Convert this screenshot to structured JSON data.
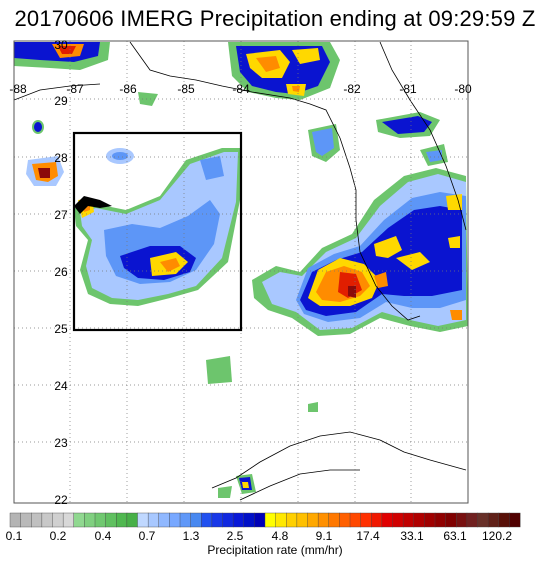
{
  "title": "20170606 IMERG Precipitation ending at 09:29:59 Z",
  "map": {
    "lon_range": [
      -88,
      -80
    ],
    "lat_range": [
      21.8,
      30.4
    ],
    "lon_labels": [
      "-88",
      "-87",
      "-86",
      "-85",
      "-84",
      "-82",
      "-81",
      "-80"
    ],
    "lat_labels": [
      "30",
      "29",
      "28",
      "27",
      "26",
      "25",
      "24",
      "23",
      "22"
    ],
    "grid": "dotted",
    "highlight_box": {
      "lon": [
        -86.7,
        -83.9
      ],
      "lat": [
        25.0,
        28.0
      ]
    }
  },
  "colorbar": {
    "title": "Precipitation rate (mm/hr)",
    "tick_labels": [
      "0.1",
      "0.2",
      "0.4",
      "0.7",
      "1.3",
      "2.5",
      "4.8",
      "9.1",
      "17.4",
      "33.1",
      "63.1",
      "120.2"
    ],
    "colors": [
      "#b4b4b4",
      "#b9b9b9",
      "#c0c0c0",
      "#c8c8c8",
      "#d0d0d0",
      "#d8d8d8",
      "#90d890",
      "#80d080",
      "#70c870",
      "#60c060",
      "#50b850",
      "#48b048",
      "#c0d8ff",
      "#a8c8ff",
      "#90b8ff",
      "#78a8ff",
      "#6098f8",
      "#4888f0",
      "#2050f0",
      "#1838e8",
      "#1028e0",
      "#0818d8",
      "#0010c8",
      "#0000b8",
      "#ffff00",
      "#ffe800",
      "#ffd000",
      "#ffc000",
      "#ffa800",
      "#ff9000",
      "#ff7800",
      "#ff6000",
      "#ff4800",
      "#ff3000",
      "#f01800",
      "#e00000",
      "#d00000",
      "#c00000",
      "#b00000",
      "#a00000",
      "#900000",
      "#800000",
      "#781010",
      "#702020",
      "#683028",
      "#602018",
      "#581008",
      "#500000"
    ]
  },
  "legend_colors": {
    "green": "#6dc56d",
    "light_blue": "#a9c8ff",
    "mid_blue": "#5d96f7",
    "dark_blue": "#0a14d0",
    "yellow": "#ffd800",
    "orange": "#ff8c00",
    "red": "#e11e00",
    "dark_red": "#8b0a0a"
  }
}
